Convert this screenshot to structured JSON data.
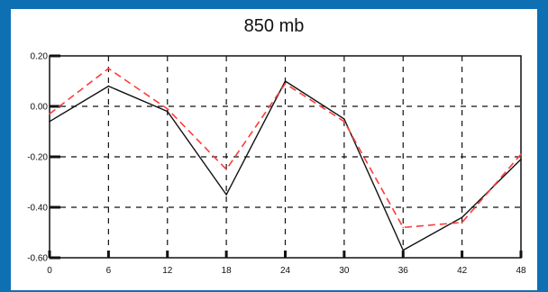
{
  "chart_data": {
    "type": "line",
    "title": "850 mb",
    "xlabel": "",
    "ylabel": "",
    "x": [
      0,
      6,
      12,
      18,
      24,
      30,
      36,
      42,
      48
    ],
    "xlim": [
      0,
      48
    ],
    "ylim": [
      -0.6,
      0.2
    ],
    "x_ticks": [
      "0",
      "6",
      "12",
      "18",
      "24",
      "30",
      "36",
      "42",
      "48"
    ],
    "y_ticks": [
      "0.20",
      "0.00",
      "-0.20",
      "-0.40",
      "-0.60"
    ],
    "grid": true,
    "series": [
      {
        "color": "#111111",
        "style": "solid",
        "values": [
          -0.06,
          0.08,
          -0.02,
          -0.35,
          0.1,
          -0.05,
          -0.57,
          -0.44,
          -0.21
        ]
      },
      {
        "color": "#ff3b3b",
        "style": "dashed",
        "values": [
          -0.03,
          0.15,
          -0.01,
          -0.25,
          0.09,
          -0.06,
          -0.48,
          -0.46,
          -0.19
        ]
      }
    ]
  }
}
